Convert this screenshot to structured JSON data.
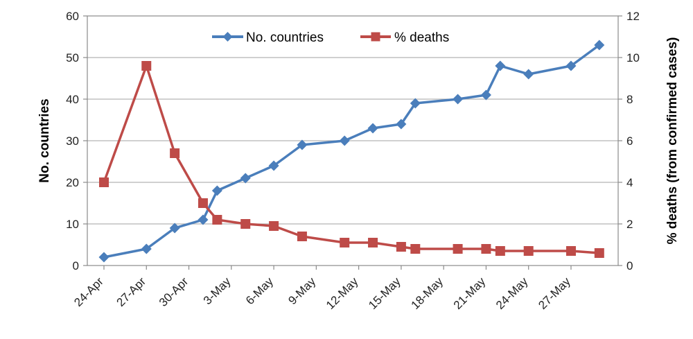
{
  "chart_data": {
    "type": "line",
    "x_tick_labels": [
      "24-Apr",
      "27-Apr",
      "30-Apr",
      "3-May",
      "6-May",
      "9-May",
      "12-May",
      "15-May",
      "18-May",
      "21-May",
      "24-May",
      "27-May"
    ],
    "ylabel_left": "No. countries",
    "ylabel_right": "% deaths (from confirmed cases)",
    "ylim_left": [
      0,
      60
    ],
    "ylim_right": [
      0,
      12
    ],
    "yticks_left": [
      0,
      10,
      20,
      30,
      40,
      50,
      60
    ],
    "yticks_right": [
      0,
      2,
      4,
      6,
      8,
      10,
      12
    ],
    "grid": "horizontal",
    "legend_position": "top",
    "series": [
      {
        "name": "No. countries",
        "axis": "left",
        "color": "#4a7ebb",
        "marker": "diamond",
        "points": [
          {
            "x": "24-Apr",
            "y": 2
          },
          {
            "x": "27-Apr",
            "y": 4
          },
          {
            "x": "29-Apr",
            "y": 9
          },
          {
            "x": "1-May",
            "y": 11
          },
          {
            "x": "2-May",
            "y": 18
          },
          {
            "x": "4-May",
            "y": 21
          },
          {
            "x": "6-May",
            "y": 24
          },
          {
            "x": "8-May",
            "y": 29
          },
          {
            "x": "11-May",
            "y": 30
          },
          {
            "x": "13-May",
            "y": 33
          },
          {
            "x": "15-May",
            "y": 34
          },
          {
            "x": "16-May",
            "y": 39
          },
          {
            "x": "19-May",
            "y": 40
          },
          {
            "x": "21-May",
            "y": 41
          },
          {
            "x": "22-May",
            "y": 48
          },
          {
            "x": "24-May",
            "y": 46
          },
          {
            "x": "27-May",
            "y": 48
          },
          {
            "x": "29-May",
            "y": 53
          }
        ]
      },
      {
        "name": "% deaths",
        "axis": "right",
        "color": "#be4b48",
        "marker": "square",
        "points": [
          {
            "x": "24-Apr",
            "y": 4.0
          },
          {
            "x": "27-Apr",
            "y": 9.6
          },
          {
            "x": "29-Apr",
            "y": 5.4
          },
          {
            "x": "1-May",
            "y": 3.0
          },
          {
            "x": "2-May",
            "y": 2.2
          },
          {
            "x": "4-May",
            "y": 2.0
          },
          {
            "x": "6-May",
            "y": 1.9
          },
          {
            "x": "8-May",
            "y": 1.4
          },
          {
            "x": "11-May",
            "y": 1.1
          },
          {
            "x": "13-May",
            "y": 1.1
          },
          {
            "x": "15-May",
            "y": 0.9
          },
          {
            "x": "16-May",
            "y": 0.8
          },
          {
            "x": "19-May",
            "y": 0.8
          },
          {
            "x": "21-May",
            "y": 0.8
          },
          {
            "x": "22-May",
            "y": 0.7
          },
          {
            "x": "24-May",
            "y": 0.7
          },
          {
            "x": "27-May",
            "y": 0.7
          },
          {
            "x": "29-May",
            "y": 0.6
          }
        ]
      }
    ]
  }
}
